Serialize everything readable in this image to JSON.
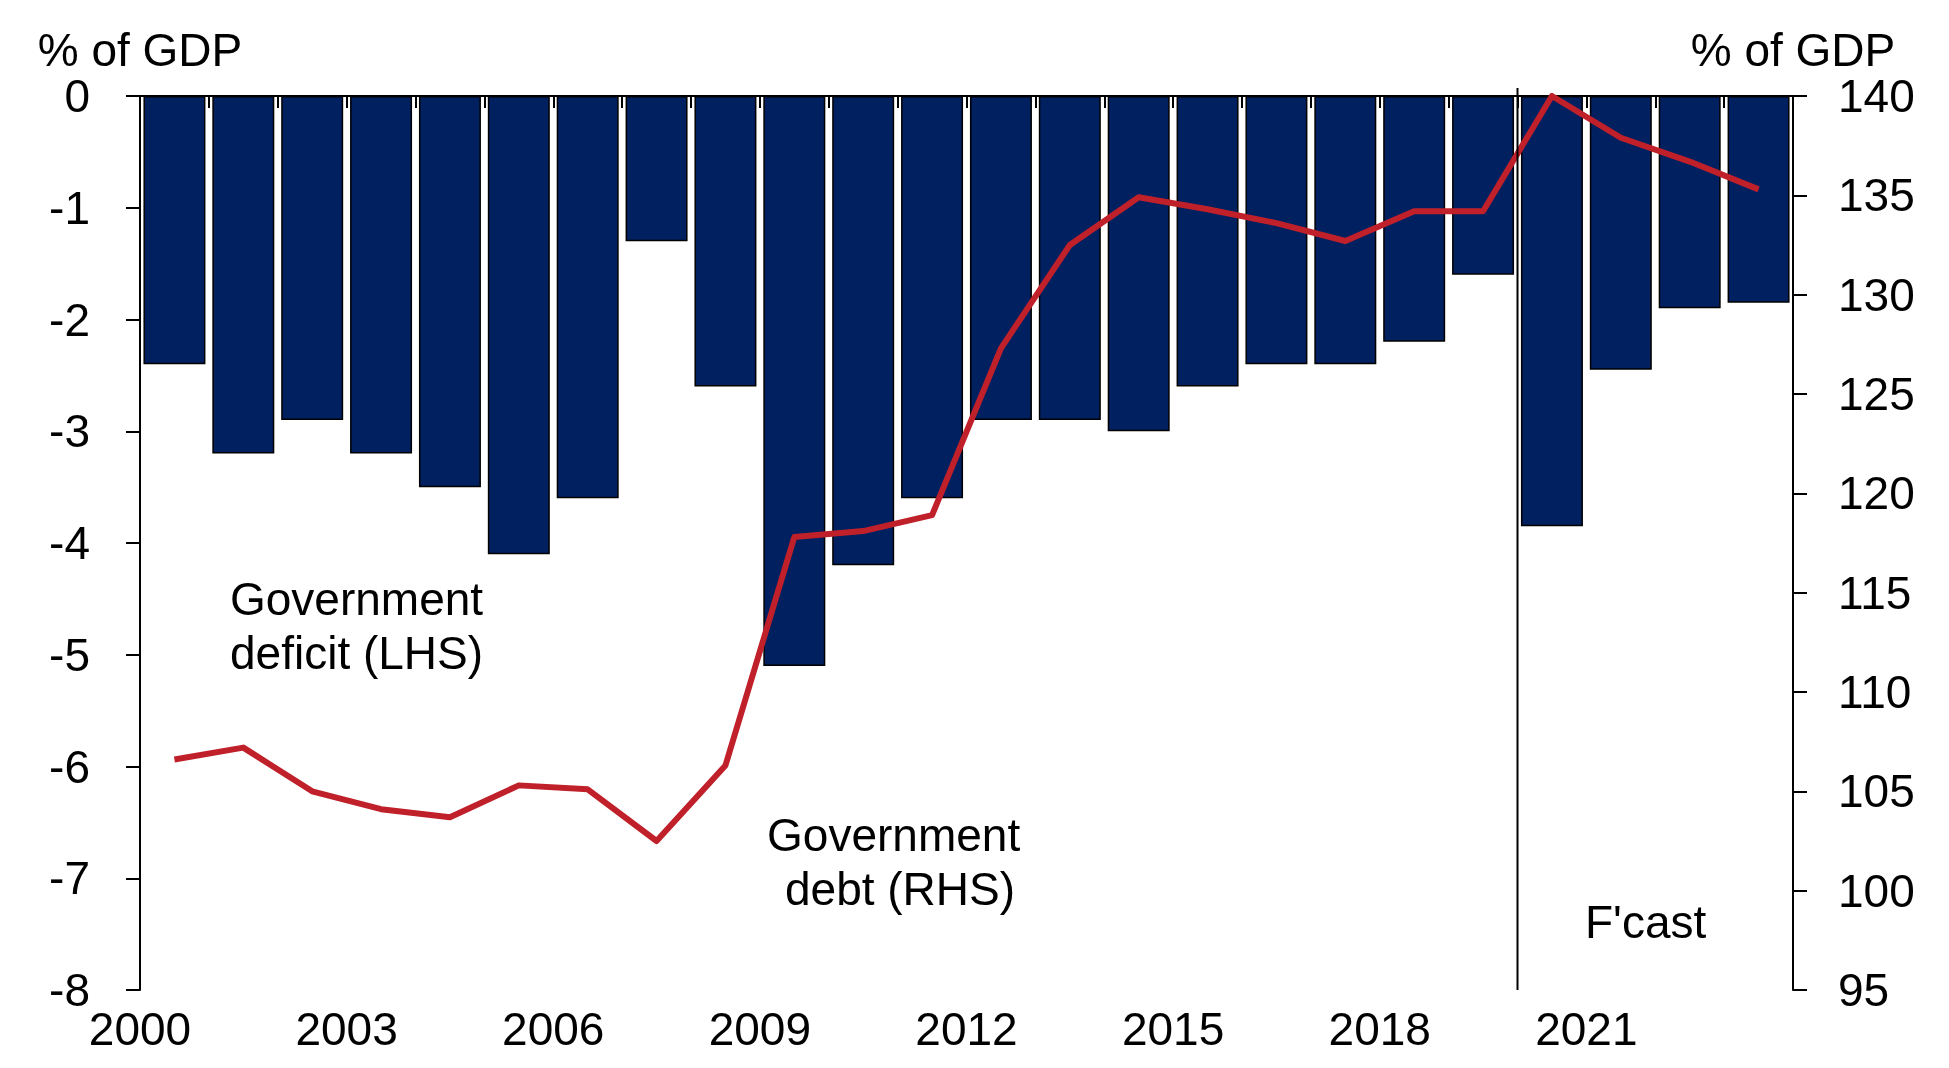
{
  "chart_data": {
    "type": "bar",
    "ylabel": "% of GDP",
    "y2label": "% of GDP",
    "x": [
      2000,
      2001,
      2002,
      2003,
      2004,
      2005,
      2006,
      2007,
      2008,
      2009,
      2010,
      2011,
      2012,
      2013,
      2014,
      2015,
      2016,
      2017,
      2018,
      2019,
      2020,
      2021,
      2022,
      2023
    ],
    "xlim": [
      1999.5,
      2023.5
    ],
    "xticks": [
      {
        "value": 1999.5,
        "label": "2000"
      },
      {
        "value": 2000.5,
        "label": null
      },
      {
        "value": 2001.5,
        "label": null
      },
      {
        "value": 2002.5,
        "label": "2003"
      },
      {
        "value": 2003.5,
        "label": null
      },
      {
        "value": 2004.5,
        "label": null
      },
      {
        "value": 2005.5,
        "label": "2006"
      },
      {
        "value": 2006.5,
        "label": null
      },
      {
        "value": 2007.5,
        "label": null
      },
      {
        "value": 2008.5,
        "label": "2009"
      },
      {
        "value": 2009.5,
        "label": null
      },
      {
        "value": 2010.5,
        "label": null
      },
      {
        "value": 2011.5,
        "label": "2012"
      },
      {
        "value": 2012.5,
        "label": null
      },
      {
        "value": 2013.5,
        "label": null
      },
      {
        "value": 2014.5,
        "label": "2015"
      },
      {
        "value": 2015.5,
        "label": null
      },
      {
        "value": 2016.5,
        "label": null
      },
      {
        "value": 2017.5,
        "label": "2018"
      },
      {
        "value": 2018.5,
        "label": null
      },
      {
        "value": 2019.5,
        "label": null
      },
      {
        "value": 2020.5,
        "label": "2021"
      },
      {
        "value": 2021.5,
        "label": null
      },
      {
        "value": 2022.5,
        "label": null
      },
      {
        "value": 2023.5,
        "label": null
      }
    ],
    "series": [
      {
        "color": "#002060",
        "values": [
          -2.4,
          -3.2,
          -2.9,
          -3.2,
          -3.5,
          -4.1,
          -3.6,
          -1.3,
          -2.6,
          -5.1,
          -4.2,
          -3.6,
          -2.9,
          -2.9,
          -3.0,
          -2.6,
          -2.4,
          -2.4,
          -2.2,
          -1.6,
          -3.85,
          -2.45,
          -1.9,
          -1.85
        ]
      },
      {
        "type": "line",
        "axis": "y2",
        "color": "#c0202a",
        "values": [
          106.6,
          107.2,
          105.0,
          104.1,
          103.7,
          105.3,
          105.1,
          102.5,
          106.3,
          117.8,
          118.1,
          118.9,
          127.3,
          132.5,
          134.9,
          134.3,
          133.6,
          132.7,
          134.2,
          134.2,
          140.0,
          137.9,
          136.7,
          135.3
        ]
      }
    ],
    "ylim": [
      -8,
      0
    ],
    "yticks": [
      -8,
      -7,
      -6,
      -5,
      -4,
      -3,
      -2,
      -1,
      0
    ],
    "y2lim": [
      95,
      140
    ],
    "y2ticks": [
      95,
      100,
      105,
      110,
      115,
      120,
      125,
      130,
      135,
      140
    ],
    "ref_lines": [
      {
        "axis": "x",
        "value": 2019.5,
        "color": "#000000"
      }
    ],
    "annotations": [
      "Government deficit (LHS)",
      "Government debt (RHS)",
      "F'cast"
    ],
    "grid": false
  }
}
